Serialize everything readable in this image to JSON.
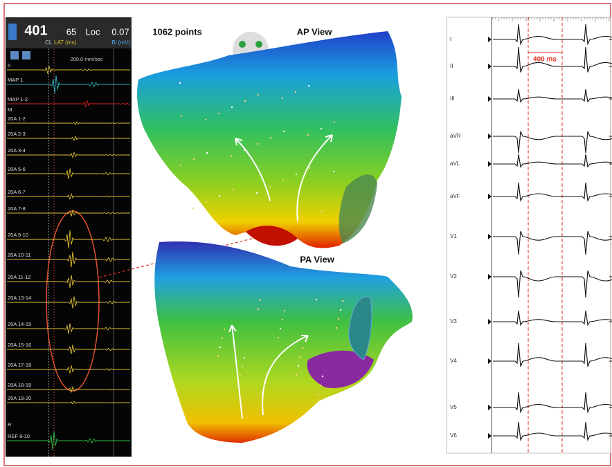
{
  "left_panel": {
    "cl_value": "401",
    "cl_label": "CL",
    "lat_value": "65",
    "lat_label": "LAT (ms)",
    "loc_label": "Loc",
    "bi_value": "0.07",
    "bi_label": "Bi (mV)",
    "sweep_speed": "200.0 mm/sec",
    "channels": [
      "II",
      "MAP 1",
      "MAP 1-2",
      "M",
      "20A 1-2",
      "20A 2-3",
      "20A 3-4",
      "20A 5-6",
      "20A 6-7",
      "20A 7-8",
      "20A 9-10",
      "20A 10-11",
      "20A 11-12",
      "20A 13-14",
      "20A 14-15",
      "20A 15-16",
      "20A 17-18",
      "20A 18-19",
      "20A 19-20",
      "R",
      "REF 9-10"
    ]
  },
  "map": {
    "points": "1062 points",
    "ap_view": "AP View",
    "pa_view": "PA View"
  },
  "ecg": {
    "leads": [
      "I",
      "II",
      "III",
      "aVR",
      "aVL",
      "aVF",
      "V1",
      "V2",
      "V3",
      "V4",
      "V5",
      "V6"
    ],
    "interval": "400 ms"
  }
}
